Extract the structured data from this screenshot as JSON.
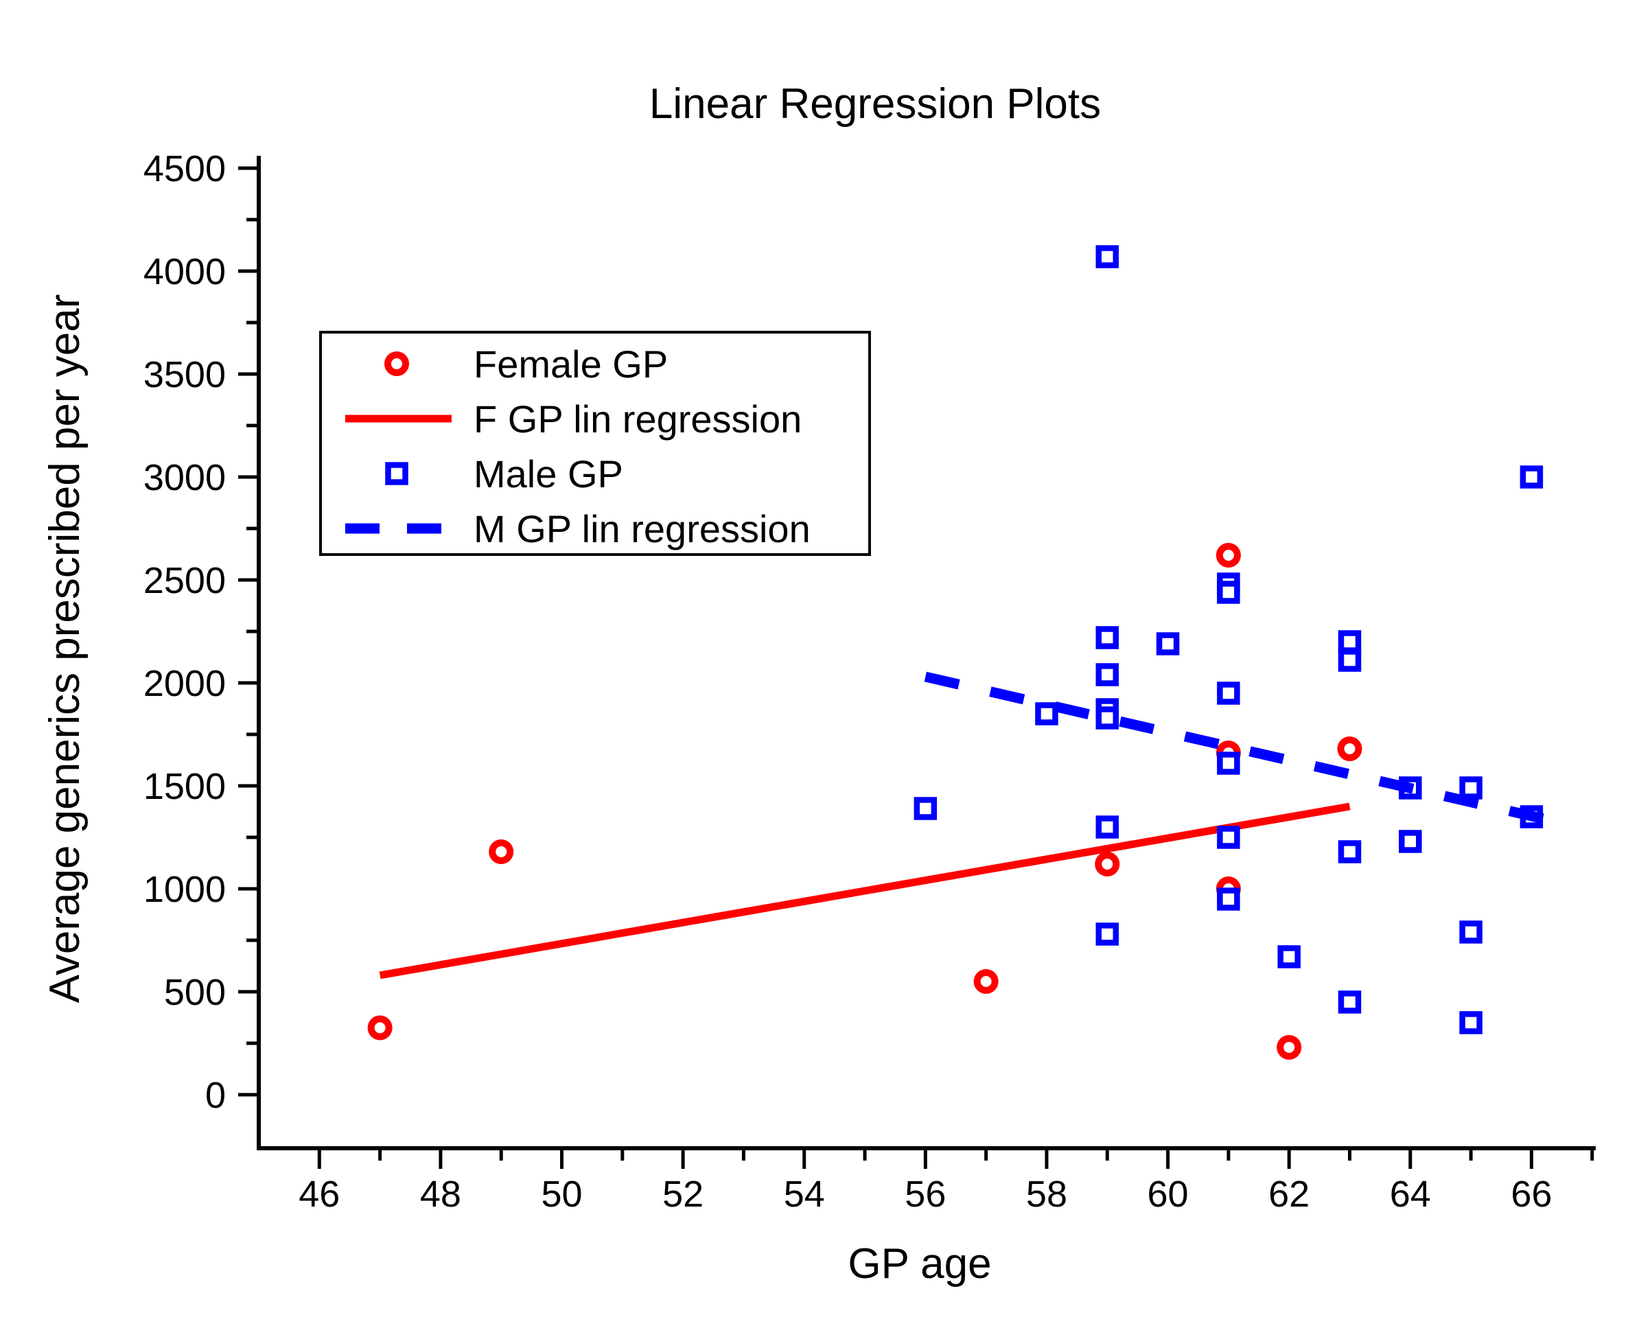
{
  "chart_data": {
    "type": "scatter",
    "title": "Linear Regression Plots",
    "xlabel": "GP age",
    "ylabel": "Average generics prescribed per year",
    "xlim": [
      45.0,
      67.06
    ],
    "ylim": [
      -260,
      4560
    ],
    "x_ticks": [
      46,
      48,
      50,
      52,
      54,
      56,
      58,
      60,
      62,
      64,
      66
    ],
    "x_minor_ticks": [
      47,
      49,
      51,
      53,
      55,
      57,
      59,
      61,
      63,
      65,
      67
    ],
    "y_ticks": [
      0,
      500,
      1000,
      1500,
      2000,
      2500,
      3000,
      3500,
      4000,
      4500
    ],
    "y_minor_ticks": [
      250,
      750,
      1250,
      1750,
      2250,
      2750,
      3250,
      3750,
      4250
    ],
    "grid": false,
    "legend_position": "upper-left-inside",
    "colors": {
      "female": "#ff0000",
      "male": "#0000ff",
      "axis": "#000000",
      "background": "#ffffff"
    },
    "series": [
      {
        "name": "Female GP",
        "kind": "scatter",
        "marker": "circle",
        "color": "#ff0000",
        "points": [
          [
            47,
            325
          ],
          [
            49,
            1180
          ],
          [
            57,
            550
          ],
          [
            59,
            1120
          ],
          [
            61,
            2620
          ],
          [
            61,
            1660
          ],
          [
            61,
            1000
          ],
          [
            62,
            230
          ],
          [
            63,
            1680
          ]
        ]
      },
      {
        "name": "F GP lin regression",
        "kind": "line",
        "style": "solid",
        "color": "#ff0000",
        "x1": 47.0,
        "y1": 580,
        "x2": 63.0,
        "y2": 1400
      },
      {
        "name": "Male GP",
        "kind": "scatter",
        "marker": "square",
        "color": "#0000ff",
        "points": [
          [
            56,
            1390
          ],
          [
            58,
            1850
          ],
          [
            59,
            4070
          ],
          [
            59,
            2220
          ],
          [
            59,
            2040
          ],
          [
            59,
            1870
          ],
          [
            59,
            1830
          ],
          [
            59,
            1300
          ],
          [
            59,
            780
          ],
          [
            60,
            2190
          ],
          [
            61,
            2480
          ],
          [
            61,
            2440
          ],
          [
            61,
            1950
          ],
          [
            61,
            1610
          ],
          [
            61,
            1250
          ],
          [
            61,
            950
          ],
          [
            62,
            670
          ],
          [
            63,
            2200
          ],
          [
            63,
            2110
          ],
          [
            63,
            1180
          ],
          [
            63,
            450
          ],
          [
            64,
            1490
          ],
          [
            64,
            1230
          ],
          [
            65,
            1490
          ],
          [
            65,
            790
          ],
          [
            65,
            350
          ],
          [
            66,
            3000
          ],
          [
            66,
            1350
          ]
        ]
      },
      {
        "name": "M GP lin regression",
        "kind": "line",
        "style": "dashed",
        "color": "#0000ff",
        "x1": 56.0,
        "y1": 2030,
        "x2": 66.2,
        "y2": 1340
      }
    ]
  },
  "legend": {
    "entries": [
      {
        "label": "Female GP",
        "swatch": "circle-marker",
        "color": "#ff0000"
      },
      {
        "label": "F GP lin regression",
        "swatch": "solid-line",
        "color": "#ff0000"
      },
      {
        "label": "Male GP",
        "swatch": "square-marker",
        "color": "#0000ff"
      },
      {
        "label": "M GP lin regression",
        "swatch": "dashed-line",
        "color": "#0000ff"
      }
    ]
  }
}
